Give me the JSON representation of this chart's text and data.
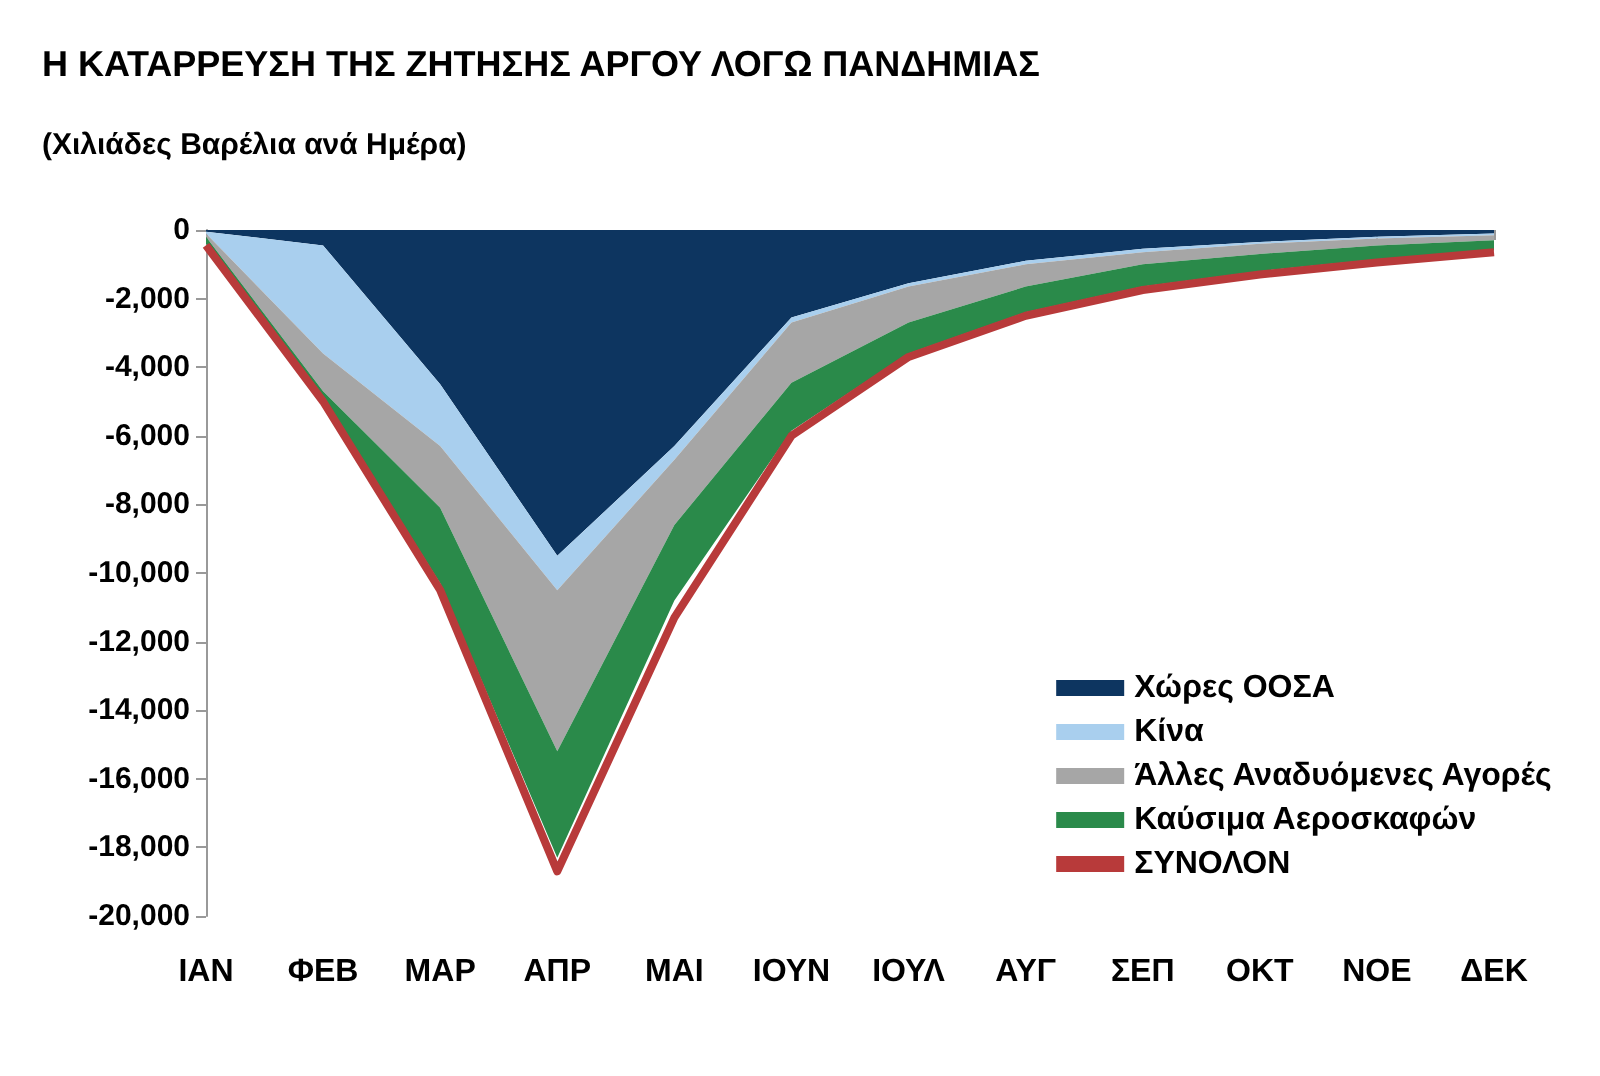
{
  "chart_data": {
    "type": "area",
    "title": "Η ΚΑΤΑΡΡΕΥΣΗ ΤΗΣ ΖΗΤΗΣΗΣ ΑΡΓΟΥ ΛΟΓΩ ΠΑΝΔΗΜΙΑΣ",
    "subtitle": "(Χιλιάδες Βαρέλια ανά Ημέρα)",
    "categories": [
      "ΙΑΝ",
      "ΦΕΒ",
      "ΜΑΡ",
      "ΑΠΡ",
      "ΜΑΙ",
      "ΙΟΥΝ",
      "ΙΟΥΛ",
      "ΑΥΓ",
      "ΣΕΠ",
      "ΟΚΤ",
      "ΝΟΕ",
      "ΔΕΚ"
    ],
    "stacked": true,
    "series": [
      {
        "name": "Χώρες ΟΟΣΑ",
        "color": "#0d3560",
        "values": [
          -50,
          -450,
          -4500,
          -9500,
          -6300,
          -2550,
          -1550,
          -900,
          -550,
          -350,
          -200,
          -100
        ]
      },
      {
        "name": "Κίνα",
        "color": "#a9cfee",
        "values": [
          -50,
          -3150,
          -1800,
          -1000,
          -400,
          -150,
          -100,
          -100,
          -100,
          -50,
          -50,
          -50
        ]
      },
      {
        "name": "Άλλες Αναδυόμενες Αγορές",
        "color": "#a6a6a6",
        "values": [
          -100,
          -1100,
          -1800,
          -4700,
          -1900,
          -1750,
          -1050,
          -650,
          -350,
          -300,
          -200,
          -150
        ]
      },
      {
        "name": "Καύσιμα Αεροσκαφών",
        "color": "#2a8a4a",
        "values": [
          -200,
          -200,
          -2200,
          -3100,
          -2200,
          -1400,
          -900,
          -750,
          -650,
          -500,
          -400,
          -300
        ]
      },
      {
        "name": "ΣΥΝΟΛΟΝ",
        "type": "line",
        "color": "#b83a3a",
        "values": [
          -450,
          -5000,
          -10500,
          -18700,
          -11300,
          -6000,
          -3700,
          -2500,
          -1750,
          -1300,
          -950,
          -650
        ]
      }
    ],
    "ylim": [
      -20000,
      0
    ],
    "yticks": [
      {
        "value": -20000,
        "label": "-20,000"
      },
      {
        "value": -18000,
        "label": "-18,000"
      },
      {
        "value": -16000,
        "label": "-16,000"
      },
      {
        "value": -14000,
        "label": "-14,000"
      },
      {
        "value": -12000,
        "label": "-12,000"
      },
      {
        "value": -10000,
        "label": "-10,000"
      },
      {
        "value": -8000,
        "label": "-8,000"
      },
      {
        "value": -6000,
        "label": "-6,000"
      },
      {
        "value": -4000,
        "label": "-4,000"
      },
      {
        "value": -2000,
        "label": "-2,000"
      },
      0
    ],
    "grid": false,
    "legend": "bottom right",
    "marker": "none",
    "line_style": "solid"
  }
}
